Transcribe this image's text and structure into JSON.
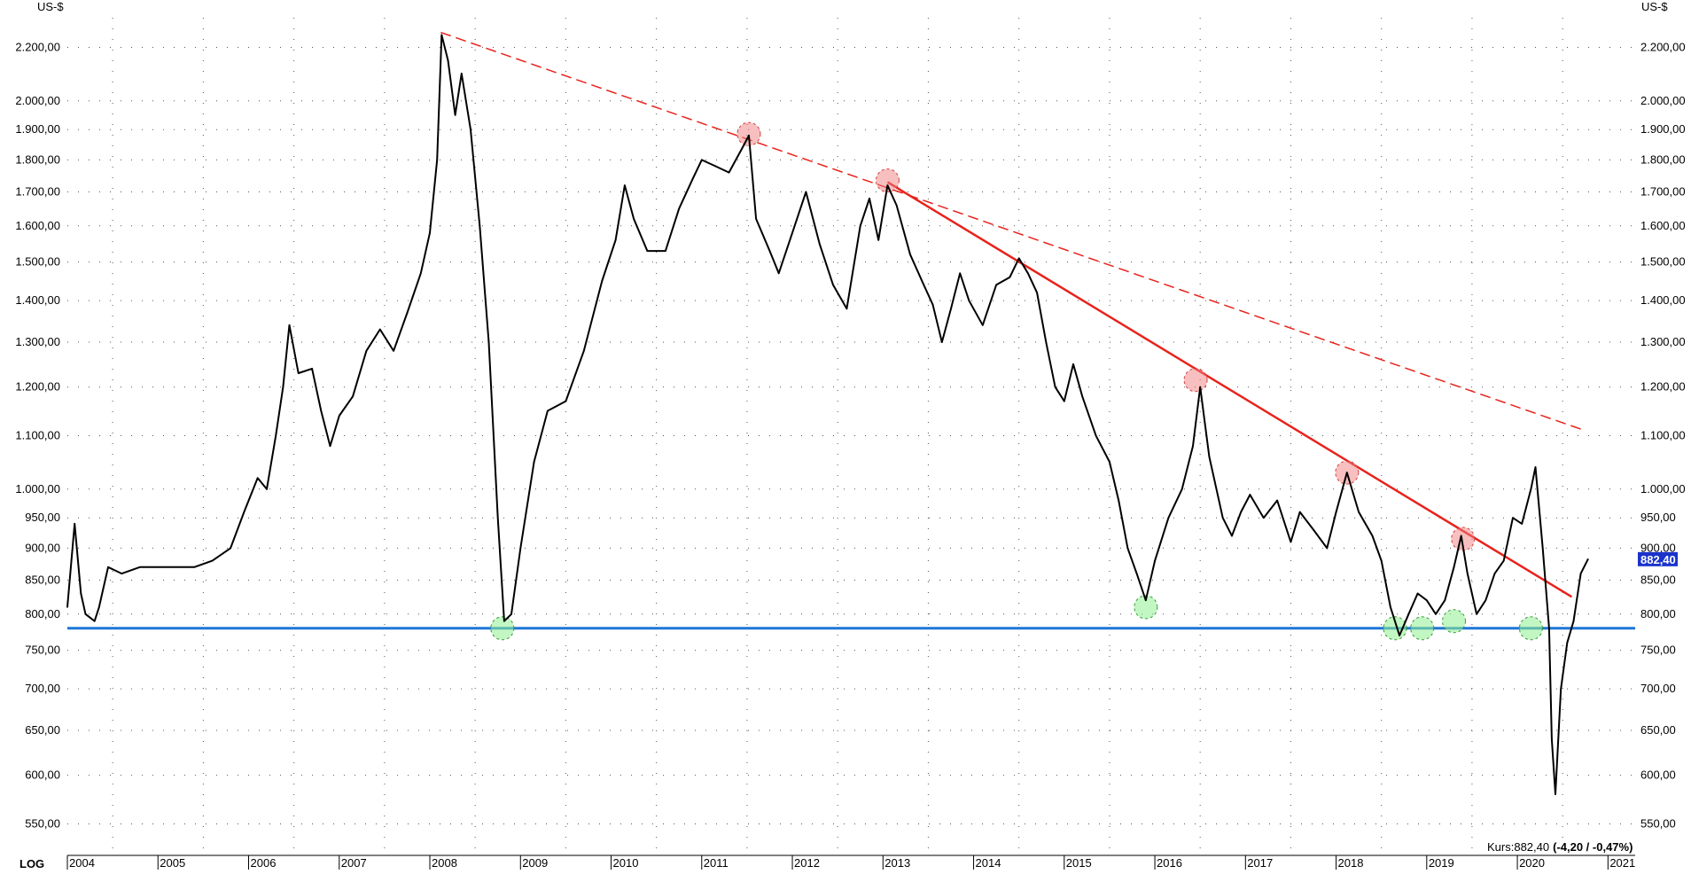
{
  "chart_data": {
    "type": "line",
    "scale": "log",
    "currency_label": "US-$",
    "scale_label": "LOG",
    "y_ticks": [
      "550,00",
      "600,00",
      "650,00",
      "700,00",
      "750,00",
      "800,00",
      "850,00",
      "900,00",
      "950,00",
      "1.000,00",
      "1.100,00",
      "1.200,00",
      "1.300,00",
      "1.400,00",
      "1.500,00",
      "1.600,00",
      "1.700,00",
      "1.800,00",
      "1.900,00",
      "2.000,00",
      "2.200,00"
    ],
    "y_tick_values": [
      550,
      600,
      650,
      700,
      750,
      800,
      850,
      900,
      950,
      1000,
      1100,
      1200,
      1300,
      1400,
      1500,
      1600,
      1700,
      1800,
      1900,
      2000,
      2200
    ],
    "ylim": [
      520,
      2320
    ],
    "xlim": [
      2004.0,
      2021.3
    ],
    "x_ticks": [
      "2004",
      "2005",
      "2006",
      "2007",
      "2008",
      "2009",
      "2010",
      "2011",
      "2012",
      "2013",
      "2014",
      "2015",
      "2016",
      "2017",
      "2018",
      "2019",
      "2020",
      "2021"
    ],
    "x_tick_values": [
      2004,
      2005,
      2006,
      2007,
      2008,
      2009,
      2010,
      2011,
      2012,
      2013,
      2014,
      2015,
      2016,
      2017,
      2018,
      2019,
      2020,
      2021
    ],
    "price_badge": "882,40",
    "status_text": {
      "prefix": "Kurs:",
      "price": "882,40",
      "change": "(-4,20 / -0,47%)"
    },
    "series": [
      {
        "points": [
          [
            2004.0,
            810
          ],
          [
            2004.08,
            940
          ],
          [
            2004.15,
            830
          ],
          [
            2004.2,
            800
          ],
          [
            2004.3,
            790
          ],
          [
            2004.35,
            810
          ],
          [
            2004.45,
            870
          ],
          [
            2004.6,
            860
          ],
          [
            2004.8,
            870
          ],
          [
            2005.0,
            870
          ],
          [
            2005.2,
            870
          ],
          [
            2005.4,
            870
          ],
          [
            2005.6,
            880
          ],
          [
            2005.8,
            900
          ],
          [
            2005.95,
            960
          ],
          [
            2006.1,
            1020
          ],
          [
            2006.2,
            1000
          ],
          [
            2006.3,
            1100
          ],
          [
            2006.38,
            1200
          ],
          [
            2006.45,
            1340
          ],
          [
            2006.55,
            1230
          ],
          [
            2006.7,
            1240
          ],
          [
            2006.8,
            1150
          ],
          [
            2006.9,
            1080
          ],
          [
            2007.0,
            1140
          ],
          [
            2007.15,
            1180
          ],
          [
            2007.3,
            1280
          ],
          [
            2007.45,
            1330
          ],
          [
            2007.6,
            1280
          ],
          [
            2007.75,
            1370
          ],
          [
            2007.9,
            1470
          ],
          [
            2008.0,
            1580
          ],
          [
            2008.08,
            1800
          ],
          [
            2008.13,
            2250
          ],
          [
            2008.2,
            2150
          ],
          [
            2008.28,
            1950
          ],
          [
            2008.35,
            2100
          ],
          [
            2008.45,
            1900
          ],
          [
            2008.55,
            1600
          ],
          [
            2008.65,
            1300
          ],
          [
            2008.75,
            950
          ],
          [
            2008.82,
            790
          ],
          [
            2008.9,
            800
          ],
          [
            2009.0,
            900
          ],
          [
            2009.15,
            1050
          ],
          [
            2009.3,
            1150
          ],
          [
            2009.5,
            1170
          ],
          [
            2009.7,
            1280
          ],
          [
            2009.9,
            1450
          ],
          [
            2010.05,
            1560
          ],
          [
            2010.15,
            1720
          ],
          [
            2010.25,
            1620
          ],
          [
            2010.4,
            1530
          ],
          [
            2010.6,
            1530
          ],
          [
            2010.75,
            1650
          ],
          [
            2010.9,
            1740
          ],
          [
            2011.0,
            1800
          ],
          [
            2011.15,
            1780
          ],
          [
            2011.3,
            1760
          ],
          [
            2011.45,
            1840
          ],
          [
            2011.52,
            1880
          ],
          [
            2011.6,
            1620
          ],
          [
            2011.75,
            1530
          ],
          [
            2011.85,
            1470
          ],
          [
            2012.0,
            1580
          ],
          [
            2012.15,
            1700
          ],
          [
            2012.3,
            1550
          ],
          [
            2012.45,
            1440
          ],
          [
            2012.6,
            1380
          ],
          [
            2012.75,
            1600
          ],
          [
            2012.85,
            1680
          ],
          [
            2012.95,
            1560
          ],
          [
            2013.05,
            1720
          ],
          [
            2013.15,
            1660
          ],
          [
            2013.3,
            1520
          ],
          [
            2013.45,
            1440
          ],
          [
            2013.55,
            1390
          ],
          [
            2013.65,
            1300
          ],
          [
            2013.75,
            1380
          ],
          [
            2013.85,
            1470
          ],
          [
            2013.95,
            1400
          ],
          [
            2014.1,
            1340
          ],
          [
            2014.25,
            1440
          ],
          [
            2014.4,
            1460
          ],
          [
            2014.5,
            1510
          ],
          [
            2014.6,
            1470
          ],
          [
            2014.7,
            1420
          ],
          [
            2014.8,
            1300
          ],
          [
            2014.9,
            1200
          ],
          [
            2015.0,
            1170
          ],
          [
            2015.1,
            1250
          ],
          [
            2015.2,
            1180
          ],
          [
            2015.35,
            1100
          ],
          [
            2015.5,
            1050
          ],
          [
            2015.6,
            980
          ],
          [
            2015.7,
            900
          ],
          [
            2015.8,
            860
          ],
          [
            2015.9,
            820
          ],
          [
            2016.0,
            880
          ],
          [
            2016.15,
            950
          ],
          [
            2016.3,
            1000
          ],
          [
            2016.42,
            1080
          ],
          [
            2016.5,
            1200
          ],
          [
            2016.6,
            1060
          ],
          [
            2016.75,
            950
          ],
          [
            2016.85,
            920
          ],
          [
            2016.95,
            960
          ],
          [
            2017.05,
            990
          ],
          [
            2017.2,
            950
          ],
          [
            2017.35,
            980
          ],
          [
            2017.5,
            910
          ],
          [
            2017.6,
            960
          ],
          [
            2017.75,
            930
          ],
          [
            2017.9,
            900
          ],
          [
            2018.0,
            960
          ],
          [
            2018.12,
            1030
          ],
          [
            2018.25,
            960
          ],
          [
            2018.4,
            920
          ],
          [
            2018.5,
            880
          ],
          [
            2018.6,
            810
          ],
          [
            2018.7,
            770
          ],
          [
            2018.8,
            800
          ],
          [
            2018.9,
            830
          ],
          [
            2019.0,
            820
          ],
          [
            2019.1,
            800
          ],
          [
            2019.2,
            820
          ],
          [
            2019.3,
            870
          ],
          [
            2019.38,
            920
          ],
          [
            2019.45,
            860
          ],
          [
            2019.55,
            800
          ],
          [
            2019.65,
            820
          ],
          [
            2019.75,
            860
          ],
          [
            2019.85,
            880
          ],
          [
            2019.95,
            950
          ],
          [
            2020.05,
            940
          ],
          [
            2020.15,
            1000
          ],
          [
            2020.2,
            1040
          ],
          [
            2020.28,
            900
          ],
          [
            2020.35,
            780
          ],
          [
            2020.38,
            640
          ],
          [
            2020.42,
            580
          ],
          [
            2020.48,
            700
          ],
          [
            2020.55,
            760
          ],
          [
            2020.62,
            790
          ],
          [
            2020.7,
            860
          ],
          [
            2020.78,
            882.4
          ]
        ]
      }
    ],
    "support_line": {
      "value": 780,
      "color": "#1f77d8"
    },
    "resistance_line": {
      "points": [
        [
          2013.05,
          1730
        ],
        [
          2020.6,
          825
        ]
      ],
      "color": "#e8231c"
    },
    "long_trend_line": {
      "points": [
        [
          2008.12,
          2260
        ],
        [
          2020.75,
          1110
        ]
      ],
      "color": "#e8231c",
      "dashed": true
    },
    "marked_highs": [
      [
        2011.52,
        1885
      ],
      [
        2013.05,
        1735
      ],
      [
        2016.45,
        1215
      ],
      [
        2018.12,
        1030
      ],
      [
        2019.4,
        915
      ]
    ],
    "marked_lows": [
      [
        2008.8,
        780
      ],
      [
        2015.9,
        810
      ],
      [
        2018.65,
        780
      ],
      [
        2018.95,
        780
      ],
      [
        2019.3,
        790
      ],
      [
        2020.15,
        780
      ]
    ],
    "colors": {
      "price": "#000000",
      "badge_bg": "#1a33cc",
      "badge_text": "#ffffff",
      "high_marker": "#f08080",
      "low_marker": "#90ee90",
      "grid_dot": "#555555"
    }
  }
}
